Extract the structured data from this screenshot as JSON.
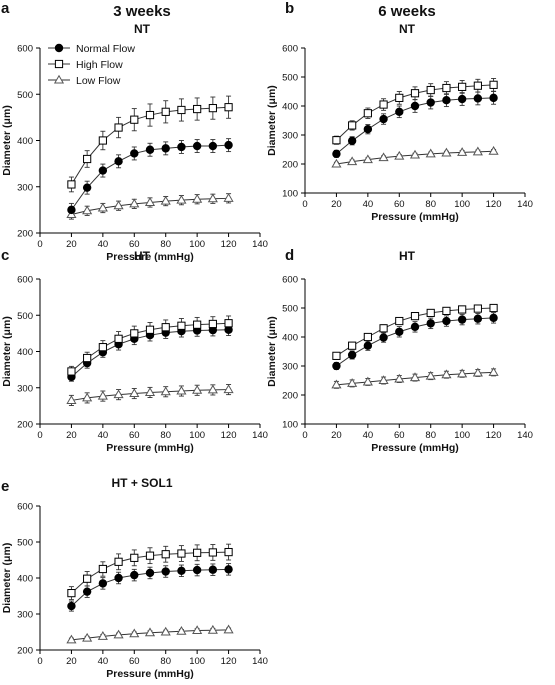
{
  "column_headers": [
    "3 weeks",
    "6 weeks"
  ],
  "legend": {
    "entries": [
      {
        "label": "Normal Flow",
        "marker": "circle-filled"
      },
      {
        "label": "High Flow",
        "marker": "square-open"
      },
      {
        "label": "Low Flow",
        "marker": "triangle-open"
      }
    ]
  },
  "colors": {
    "normal_marker": "#000000",
    "high_marker": "#ffffff",
    "low_marker": "#ffffff",
    "line": "#333333"
  },
  "chart_data": [
    {
      "panel_label": "a",
      "title": "NT",
      "type": "line",
      "xlabel": "Pressure (mmHg)",
      "ylabel": "Diameter (μm)",
      "xlim": [
        0,
        140
      ],
      "ylim": [
        200,
        600
      ],
      "xticks": [
        "0",
        "20",
        "40",
        "60",
        "80",
        "100",
        "120",
        "140"
      ],
      "yticks": [
        "200",
        "300",
        "400",
        "500",
        "600"
      ],
      "x": [
        20,
        30,
        40,
        50,
        60,
        70,
        80,
        90,
        100,
        110,
        120
      ],
      "series": [
        {
          "name": "Normal Flow",
          "values": [
            250,
            298,
            335,
            355,
            372,
            380,
            383,
            386,
            388,
            388,
            390
          ],
          "error": [
            14,
            14,
            14,
            14,
            14,
            14,
            14,
            14,
            14,
            14,
            14
          ]
        },
        {
          "name": "High Flow",
          "values": [
            305,
            360,
            400,
            428,
            445,
            455,
            462,
            466,
            468,
            470,
            472
          ],
          "error": [
            16,
            18,
            20,
            22,
            24,
            24,
            24,
            24,
            24,
            24,
            24
          ]
        },
        {
          "name": "Low Flow",
          "values": [
            240,
            248,
            254,
            259,
            263,
            266,
            269,
            271,
            273,
            274,
            275
          ],
          "error": [
            10,
            10,
            10,
            10,
            10,
            10,
            10,
            10,
            10,
            10,
            10
          ]
        }
      ]
    },
    {
      "panel_label": "b",
      "title": "NT",
      "type": "line",
      "xlabel": "Pressure (mmHg)",
      "ylabel": "Diameter (μm)",
      "xlim": [
        0,
        140
      ],
      "ylim": [
        100,
        600
      ],
      "xticks": [
        "0",
        "20",
        "40",
        "60",
        "80",
        "100",
        "120",
        "140"
      ],
      "yticks": [
        "100",
        "200",
        "300",
        "400",
        "500",
        "600"
      ],
      "x": [
        20,
        30,
        40,
        50,
        60,
        70,
        80,
        90,
        100,
        110,
        120
      ],
      "series": [
        {
          "name": "Normal Flow",
          "values": [
            235,
            280,
            320,
            355,
            380,
            400,
            412,
            420,
            424,
            426,
            428
          ],
          "error": [
            12,
            14,
            16,
            18,
            20,
            22,
            22,
            22,
            22,
            22,
            22
          ]
        },
        {
          "name": "High Flow",
          "values": [
            282,
            333,
            375,
            405,
            428,
            444,
            455,
            462,
            466,
            470,
            473
          ],
          "error": [
            14,
            16,
            18,
            20,
            22,
            22,
            22,
            22,
            22,
            22,
            22
          ]
        },
        {
          "name": "Low Flow",
          "values": [
            200,
            208,
            215,
            222,
            227,
            231,
            235,
            238,
            240,
            242,
            244
          ],
          "error": [
            6,
            6,
            6,
            6,
            6,
            6,
            6,
            6,
            6,
            6,
            6
          ]
        }
      ]
    },
    {
      "panel_label": "c",
      "title": "HT",
      "type": "line",
      "xlabel": "Pressure (mmHg)",
      "ylabel": "Diameter (μm)",
      "xlim": [
        0,
        140
      ],
      "ylim": [
        200,
        600
      ],
      "xticks": [
        "0",
        "20",
        "40",
        "60",
        "80",
        "100",
        "120",
        "140"
      ],
      "yticks": [
        "200",
        "300",
        "400",
        "500",
        "600"
      ],
      "x": [
        20,
        30,
        40,
        50,
        60,
        70,
        80,
        90,
        100,
        110,
        120
      ],
      "series": [
        {
          "name": "Normal Flow",
          "values": [
            330,
            368,
            398,
            420,
            435,
            445,
            452,
            456,
            458,
            459,
            460
          ],
          "error": [
            12,
            14,
            14,
            16,
            16,
            16,
            16,
            16,
            16,
            16,
            16
          ]
        },
        {
          "name": "High Flow",
          "values": [
            345,
            382,
            412,
            435,
            450,
            460,
            467,
            471,
            474,
            476,
            478
          ],
          "error": [
            14,
            16,
            18,
            20,
            20,
            20,
            20,
            20,
            20,
            20,
            20
          ]
        },
        {
          "name": "Low Flow",
          "values": [
            265,
            272,
            277,
            281,
            284,
            287,
            289,
            291,
            293,
            294,
            295
          ],
          "error": [
            14,
            14,
            14,
            14,
            14,
            14,
            14,
            14,
            14,
            14,
            14
          ]
        }
      ]
    },
    {
      "panel_label": "d",
      "title": "HT",
      "type": "line",
      "xlabel": "Pressure (mmHg)",
      "ylabel": "Diameter (μm)",
      "xlim": [
        0,
        140
      ],
      "ylim": [
        100,
        600
      ],
      "xticks": [
        "0",
        "20",
        "40",
        "60",
        "80",
        "100",
        "120",
        "140"
      ],
      "yticks": [
        "100",
        "200",
        "300",
        "400",
        "500",
        "600"
      ],
      "x": [
        20,
        30,
        40,
        50,
        60,
        70,
        80,
        90,
        100,
        110,
        120
      ],
      "series": [
        {
          "name": "Normal Flow",
          "values": [
            300,
            338,
            370,
            398,
            418,
            435,
            447,
            455,
            460,
            463,
            466
          ],
          "error": [
            12,
            14,
            16,
            16,
            18,
            18,
            18,
            18,
            18,
            18,
            18
          ]
        },
        {
          "name": "High Flow",
          "values": [
            335,
            370,
            400,
            430,
            455,
            472,
            483,
            490,
            495,
            498,
            500
          ],
          "error": [
            10,
            12,
            12,
            12,
            12,
            12,
            12,
            12,
            12,
            12,
            12
          ]
        },
        {
          "name": "Low Flow",
          "values": [
            235,
            240,
            245,
            250,
            255,
            260,
            265,
            270,
            273,
            276,
            278
          ],
          "error": [
            12,
            12,
            12,
            12,
            12,
            12,
            12,
            12,
            12,
            12,
            12
          ]
        }
      ]
    },
    {
      "panel_label": "e",
      "title": "HT + SOL1",
      "type": "line",
      "xlabel": "Pressure (mmHg)",
      "ylabel": "Diameter (μm)",
      "xlim": [
        0,
        140
      ],
      "ylim": [
        200,
        600
      ],
      "xticks": [
        "0",
        "20",
        "40",
        "60",
        "80",
        "100",
        "120",
        "140"
      ],
      "yticks": [
        "200",
        "300",
        "400",
        "500",
        "600"
      ],
      "x": [
        20,
        30,
        40,
        50,
        60,
        70,
        80,
        90,
        100,
        110,
        120
      ],
      "series": [
        {
          "name": "Normal Flow",
          "values": [
            322,
            362,
            385,
            400,
            408,
            414,
            418,
            420,
            422,
            423,
            424
          ],
          "error": [
            14,
            16,
            16,
            16,
            16,
            16,
            16,
            16,
            16,
            16,
            16
          ]
        },
        {
          "name": "High Flow",
          "values": [
            358,
            398,
            425,
            445,
            456,
            462,
            466,
            468,
            470,
            471,
            472
          ],
          "error": [
            18,
            20,
            20,
            22,
            22,
            22,
            22,
            22,
            22,
            22,
            22
          ]
        },
        {
          "name": "Low Flow",
          "values": [
            228,
            233,
            238,
            242,
            245,
            248,
            250,
            252,
            254,
            255,
            256
          ],
          "error": [
            5,
            5,
            5,
            5,
            5,
            5,
            5,
            5,
            5,
            5,
            5
          ]
        }
      ]
    }
  ]
}
